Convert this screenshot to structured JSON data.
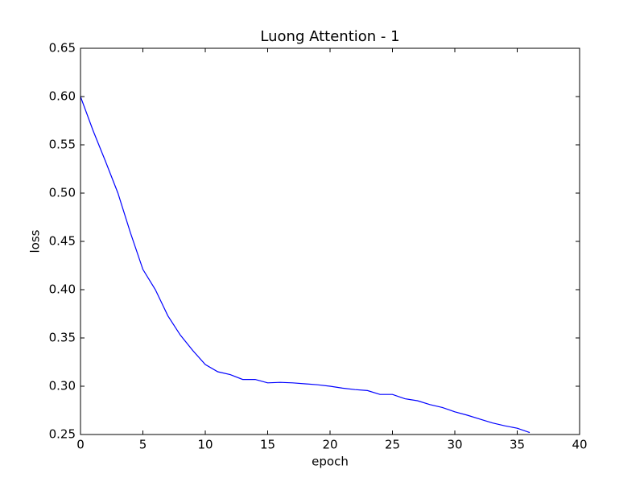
{
  "chart_data": {
    "type": "line",
    "title": "Luong Attention - 1",
    "xlabel": "epoch",
    "ylabel": "loss",
    "x": [
      0,
      1,
      2,
      3,
      4,
      5,
      6,
      7,
      8,
      9,
      10,
      11,
      12,
      13,
      14,
      15,
      16,
      17,
      18,
      19,
      20,
      21,
      22,
      23,
      24,
      25,
      26,
      27,
      28,
      29,
      30,
      31,
      32,
      33,
      34,
      35,
      36
    ],
    "series": [
      {
        "color": "#0000ff",
        "values": [
          0.6,
          0.565,
          0.533,
          0.5,
          0.459,
          0.421,
          0.4,
          0.373,
          0.353,
          0.337,
          0.3225,
          0.315,
          0.312,
          0.307,
          0.307,
          0.3035,
          0.304,
          0.3035,
          0.3025,
          0.3015,
          0.3,
          0.298,
          0.2965,
          0.2955,
          0.2915,
          0.2915,
          0.287,
          0.285,
          0.281,
          0.278,
          0.2735,
          0.27,
          0.266,
          0.262,
          0.259,
          0.2565,
          0.252
        ]
      }
    ],
    "xlim": [
      0,
      40
    ],
    "ylim": [
      0.25,
      0.65
    ],
    "xticks": [
      0,
      5,
      10,
      15,
      20,
      25,
      30,
      35,
      40
    ],
    "yticks": [
      {
        "value": 0.25,
        "label": "0.25"
      },
      {
        "value": 0.3,
        "label": "0.30"
      },
      {
        "value": 0.35,
        "label": "0.35"
      },
      {
        "value": 0.4,
        "label": "0.40"
      },
      {
        "value": 0.45,
        "label": "0.45"
      },
      {
        "value": 0.5,
        "label": "0.50"
      },
      {
        "value": 0.55,
        "label": "0.55"
      },
      {
        "value": 0.6,
        "label": "0.60"
      },
      {
        "value": 0.65,
        "label": "0.65"
      }
    ]
  }
}
